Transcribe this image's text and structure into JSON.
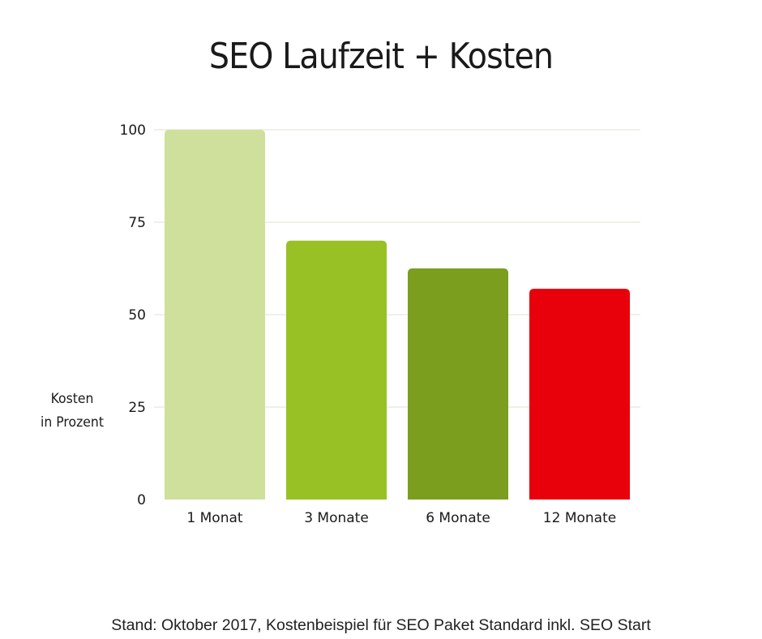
{
  "chart_data": {
    "type": "bar",
    "title": "SEO Laufzeit + Kosten",
    "ylabel": [
      "Kosten",
      "in Prozent"
    ],
    "xlabel": "",
    "categories": [
      "1 Monat",
      "3 Monate",
      "6 Monate",
      "12 Monate"
    ],
    "values": [
      100,
      70,
      62.5,
      57
    ],
    "ylim": [
      0,
      100
    ],
    "yticks": [
      "0",
      "25",
      "50",
      "75",
      "100"
    ],
    "colors": [
      "#cfe09c",
      "#97c124",
      "#7b9e1e",
      "#e8000b"
    ],
    "grid": true,
    "legend": "none"
  },
  "footnote": "Stand: Oktober 2017, Kostenbeispiel für SEO Paket Standard inkl. SEO Start",
  "colors": {
    "grid": "#e2e2d6",
    "text": "#1a1a1a"
  }
}
